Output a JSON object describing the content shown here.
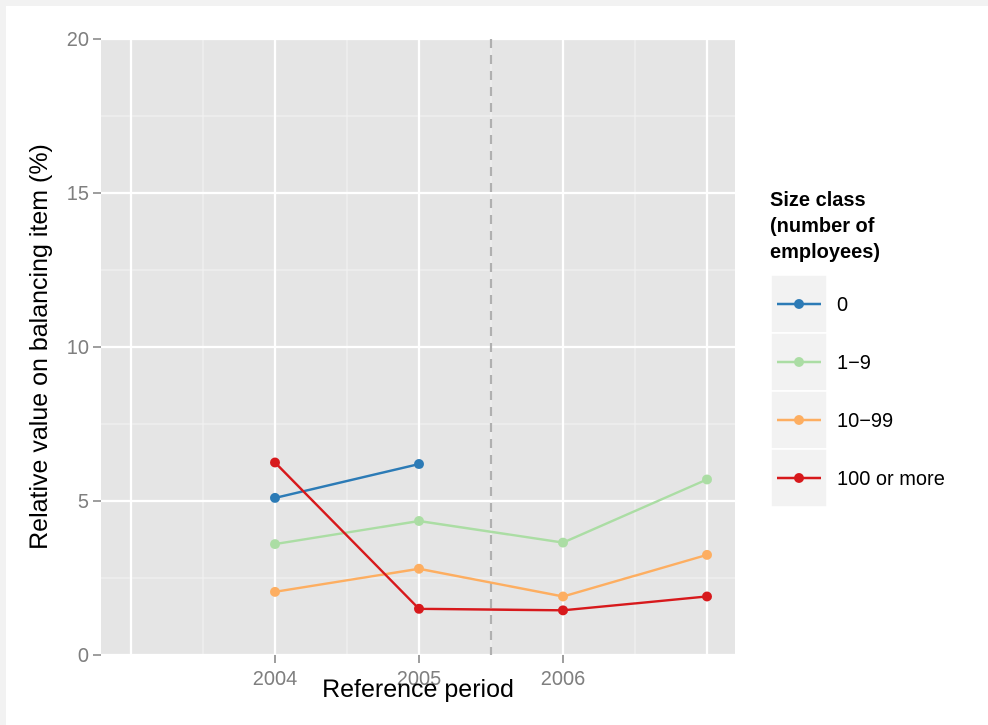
{
  "chart_data": {
    "type": "line",
    "xlabel": "Reference period",
    "ylabel": "Relative value on balancing item (%)",
    "x_ticks": [
      "2004",
      "2005",
      "2006"
    ],
    "y_ticks": [
      "0",
      "5",
      "10",
      "15",
      "20"
    ],
    "xlim": [
      2003,
      2007.2
    ],
    "ylim": [
      0,
      20
    ],
    "grid": true,
    "vline": {
      "x": 2005.5,
      "style": "dashed"
    },
    "legend": {
      "title_lines": [
        "Size class",
        "(number of",
        "employees)"
      ],
      "placement": "right"
    },
    "series": [
      {
        "name": "0",
        "color": "#2c7bb6",
        "x": [
          2004,
          2005
        ],
        "y": [
          5.1,
          6.2
        ]
      },
      {
        "name": "1−9",
        "color": "#abdda4",
        "x": [
          2004,
          2005,
          2006,
          2007
        ],
        "y": [
          3.6,
          4.35,
          3.65,
          5.7
        ]
      },
      {
        "name": "10−99",
        "color": "#fdae61",
        "x": [
          2004,
          2005,
          2006,
          2007
        ],
        "y": [
          2.05,
          2.8,
          1.9,
          3.25
        ]
      },
      {
        "name": "100 or more",
        "color": "#d7191c",
        "x": [
          2004,
          2005,
          2006,
          2007
        ],
        "y": [
          6.25,
          1.5,
          1.45,
          1.9
        ]
      }
    ]
  }
}
